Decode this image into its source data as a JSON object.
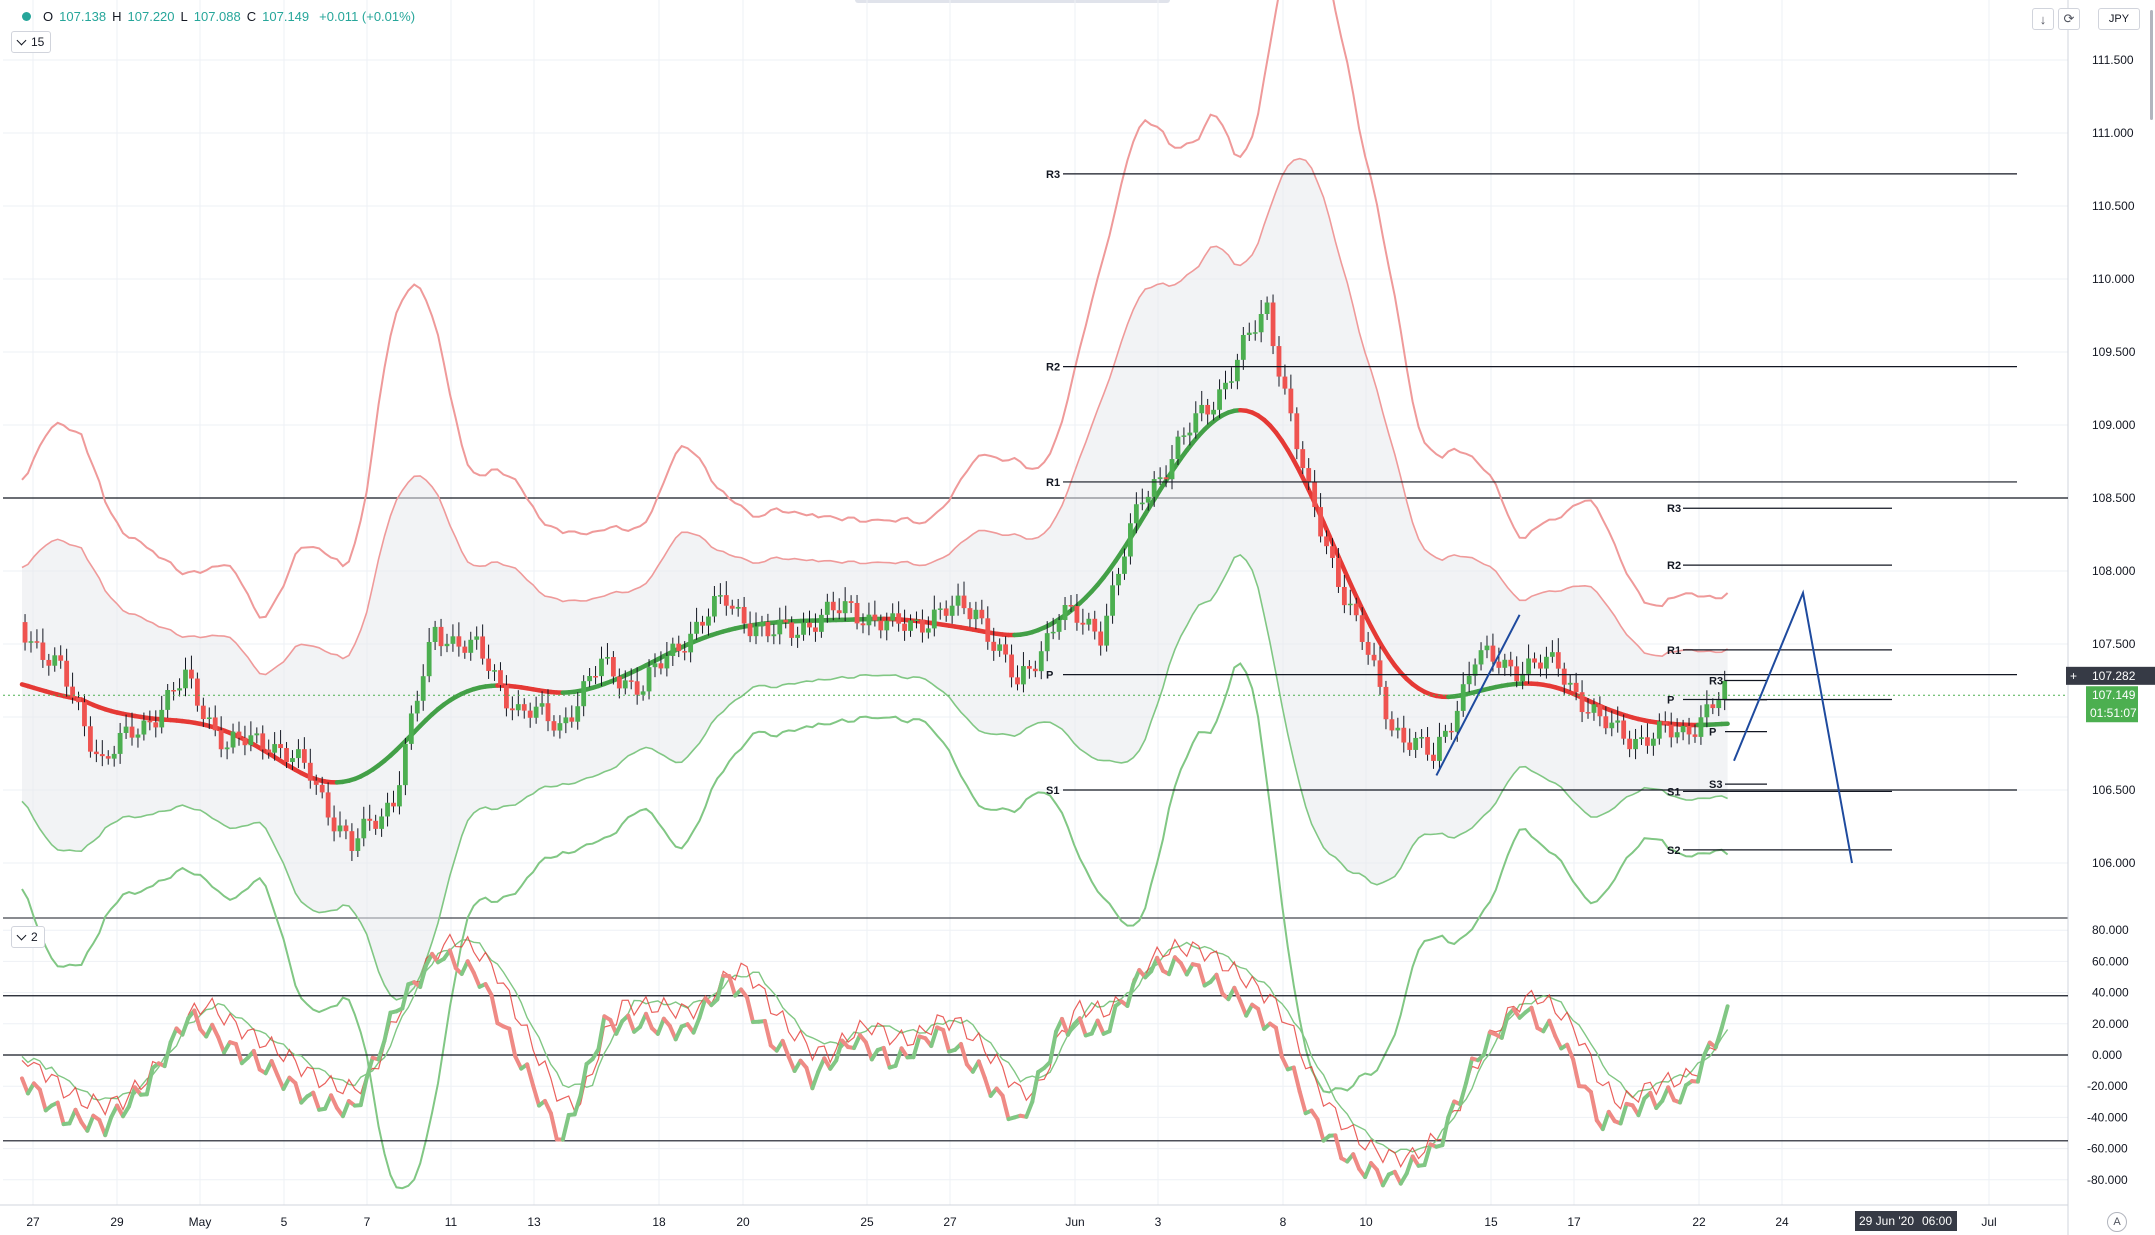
{
  "legend": {
    "open_label": "O",
    "open": "107.138",
    "high_label": "H",
    "high": "107.220",
    "low_label": "L",
    "low": "107.088",
    "close_label": "C",
    "close": "107.149",
    "change": "+0.011 (+0.01%)"
  },
  "main_indicator": {
    "value": "15"
  },
  "sub_indicator": {
    "value": "2"
  },
  "currency": "JPY",
  "price_tags": {
    "crosshair": "107.282",
    "last": "107.149",
    "countdown": "01:51:07"
  },
  "crosshair_time": "29 Jun '20",
  "crosshair_hour": "06:00",
  "auto_label": "A",
  "colors": {
    "bull": "#4caf50",
    "bear": "#ef5350",
    "ma_red": "#e53935",
    "ma_green": "#43a047",
    "band_red": "#ef9a9a",
    "band_green": "#81c784",
    "drawing": "#1e4a9e",
    "grid": "#eef1f5",
    "text": "#131722"
  },
  "chart_data": [
    {
      "type": "candlestick",
      "symbol_currency": "JPY",
      "ylim": [
        105.75,
        111.6
      ],
      "y_ticks": [
        "111.500",
        "111.000",
        "110.500",
        "110.000",
        "109.500",
        "109.000",
        "108.500",
        "108.000",
        "107.500",
        "107.000",
        "106.500",
        "106.000"
      ],
      "x_ticks": [
        "27",
        "29",
        "May",
        "5",
        "7",
        "11",
        "13",
        "18",
        "20",
        "25",
        "27",
        "Jun",
        "3",
        "8",
        "10",
        "15",
        "17",
        "22",
        "24",
        "Jul"
      ],
      "ohlc_last": {
        "open": 107.138,
        "high": 107.22,
        "low": 107.088,
        "close": 107.149
      },
      "path_anchors": [
        {
          "x": "27 Apr",
          "y": 107.65
        },
        {
          "x": "28 Apr",
          "y": 107.3
        },
        {
          "x": "29 Apr",
          "y": 106.7
        },
        {
          "x": "30 Apr",
          "y": 106.95
        },
        {
          "x": "1 May",
          "y": 107.25
        },
        {
          "x": "4 May",
          "y": 106.8
        },
        {
          "x": "5 May",
          "y": 106.85
        },
        {
          "x": "6 May",
          "y": 106.6
        },
        {
          "x": "7 May",
          "y": 106.1
        },
        {
          "x": "8 May",
          "y": 106.45
        },
        {
          "x": "11 May",
          "y": 107.6
        },
        {
          "x": "12 May",
          "y": 107.45
        },
        {
          "x": "13 May",
          "y": 107.05
        },
        {
          "x": "14 May",
          "y": 106.95
        },
        {
          "x": "15 May",
          "y": 107.35
        },
        {
          "x": "18 May",
          "y": 107.2
        },
        {
          "x": "19 May",
          "y": 107.55
        },
        {
          "x": "20 May",
          "y": 107.8
        },
        {
          "x": "21 May",
          "y": 107.55
        },
        {
          "x": "22 May",
          "y": 107.65
        },
        {
          "x": "25 May",
          "y": 107.75
        },
        {
          "x": "26 May",
          "y": 107.6
        },
        {
          "x": "27 May",
          "y": 107.7
        },
        {
          "x": "28 May",
          "y": 107.75
        },
        {
          "x": "29 May",
          "y": 107.2
        },
        {
          "x": "1 Jun",
          "y": 107.7
        },
        {
          "x": "2 Jun",
          "y": 107.6
        },
        {
          "x": "3 Jun",
          "y": 108.5
        },
        {
          "x": "4 Jun",
          "y": 108.9
        },
        {
          "x": "5 Jun",
          "y": 109.3
        },
        {
          "x": "8 Jun",
          "y": 109.8
        },
        {
          "x": "9 Jun",
          "y": 108.5
        },
        {
          "x": "10 Jun",
          "y": 107.75
        },
        {
          "x": "11 Jun",
          "y": 106.95
        },
        {
          "x": "12 Jun",
          "y": 106.7
        },
        {
          "x": "15 Jun",
          "y": 107.4
        },
        {
          "x": "16 Jun",
          "y": 107.35
        },
        {
          "x": "17 Jun",
          "y": 107.35
        },
        {
          "x": "18 Jun",
          "y": 106.95
        },
        {
          "x": "19 Jun",
          "y": 106.85
        },
        {
          "x": "22 Jun",
          "y": 106.9
        },
        {
          "x": "23 Jun",
          "y": 107.149
        }
      ],
      "pivots_monthly": {
        "R3": 110.72,
        "R2": 109.4,
        "R1": 108.61,
        "P": 107.29,
        "S1": 106.5
      },
      "pivots_weekly": {
        "R3": 108.43,
        "R2": 108.04,
        "R1": 107.46,
        "P": 107.12,
        "S1": 106.49,
        "S2": 106.09
      },
      "pivots_daily": {
        "R3": 107.25,
        "P": 106.9,
        "S3": 106.54
      },
      "horizontal_line": 108.5,
      "projection": [
        {
          "x": "23 Jun",
          "y": 106.7
        },
        {
          "x": "25 Jun",
          "y": 107.85
        },
        {
          "x": "27 Jun",
          "y": 106.0
        }
      ],
      "triangle": [
        {
          "x": "12 Jun",
          "y": 106.6
        },
        {
          "x": "16 Jun",
          "y": 107.7
        }
      ]
    },
    {
      "type": "line",
      "indicator": "oscillator",
      "ylim": [
        -88,
        86
      ],
      "y_ticks": [
        "80.000",
        "60.000",
        "40.000",
        "20.000",
        "0.000",
        "-20.000",
        "-40.000",
        "-60.000",
        "-80.000"
      ],
      "levels": [
        38,
        0,
        -55
      ],
      "path_anchors": [
        {
          "x": "27 Apr",
          "y": -15
        },
        {
          "x": "28 Apr",
          "y": -40
        },
        {
          "x": "29 Apr",
          "y": -45
        },
        {
          "x": "30 Apr",
          "y": -20
        },
        {
          "x": "1 May",
          "y": 25
        },
        {
          "x": "4 May",
          "y": 5
        },
        {
          "x": "5 May",
          "y": -10
        },
        {
          "x": "6 May",
          "y": -30
        },
        {
          "x": "7 May",
          "y": -35
        },
        {
          "x": "8 May",
          "y": 30
        },
        {
          "x": "11 May",
          "y": 65
        },
        {
          "x": "12 May",
          "y": 50
        },
        {
          "x": "13 May",
          "y": -5
        },
        {
          "x": "14 May",
          "y": -55
        },
        {
          "x": "15 May",
          "y": 20
        },
        {
          "x": "18 May",
          "y": 20
        },
        {
          "x": "19 May",
          "y": 15
        },
        {
          "x": "20 May",
          "y": 50
        },
        {
          "x": "21 May",
          "y": 10
        },
        {
          "x": "22 May",
          "y": -15
        },
        {
          "x": "25 May",
          "y": 10
        },
        {
          "x": "26 May",
          "y": -5
        },
        {
          "x": "27 May",
          "y": 15
        },
        {
          "x": "28 May",
          "y": -10
        },
        {
          "x": "29 May",
          "y": -45
        },
        {
          "x": "1 Jun",
          "y": 20
        },
        {
          "x": "2 Jun",
          "y": 15
        },
        {
          "x": "3 Jun",
          "y": 55
        },
        {
          "x": "4 Jun",
          "y": 58
        },
        {
          "x": "5 Jun",
          "y": 40
        },
        {
          "x": "8 Jun",
          "y": 20
        },
        {
          "x": "9 Jun",
          "y": -40
        },
        {
          "x": "10 Jun",
          "y": -70
        },
        {
          "x": "11 Jun",
          "y": -80
        },
        {
          "x": "12 Jun",
          "y": -60
        },
        {
          "x": "15 Jun",
          "y": 0
        },
        {
          "x": "16 Jun",
          "y": 30
        },
        {
          "x": "17 Jun",
          "y": 10
        },
        {
          "x": "18 Jun",
          "y": -45
        },
        {
          "x": "19 Jun",
          "y": -30
        },
        {
          "x": "22 Jun",
          "y": -25
        },
        {
          "x": "23 Jun",
          "y": 25
        }
      ]
    }
  ]
}
